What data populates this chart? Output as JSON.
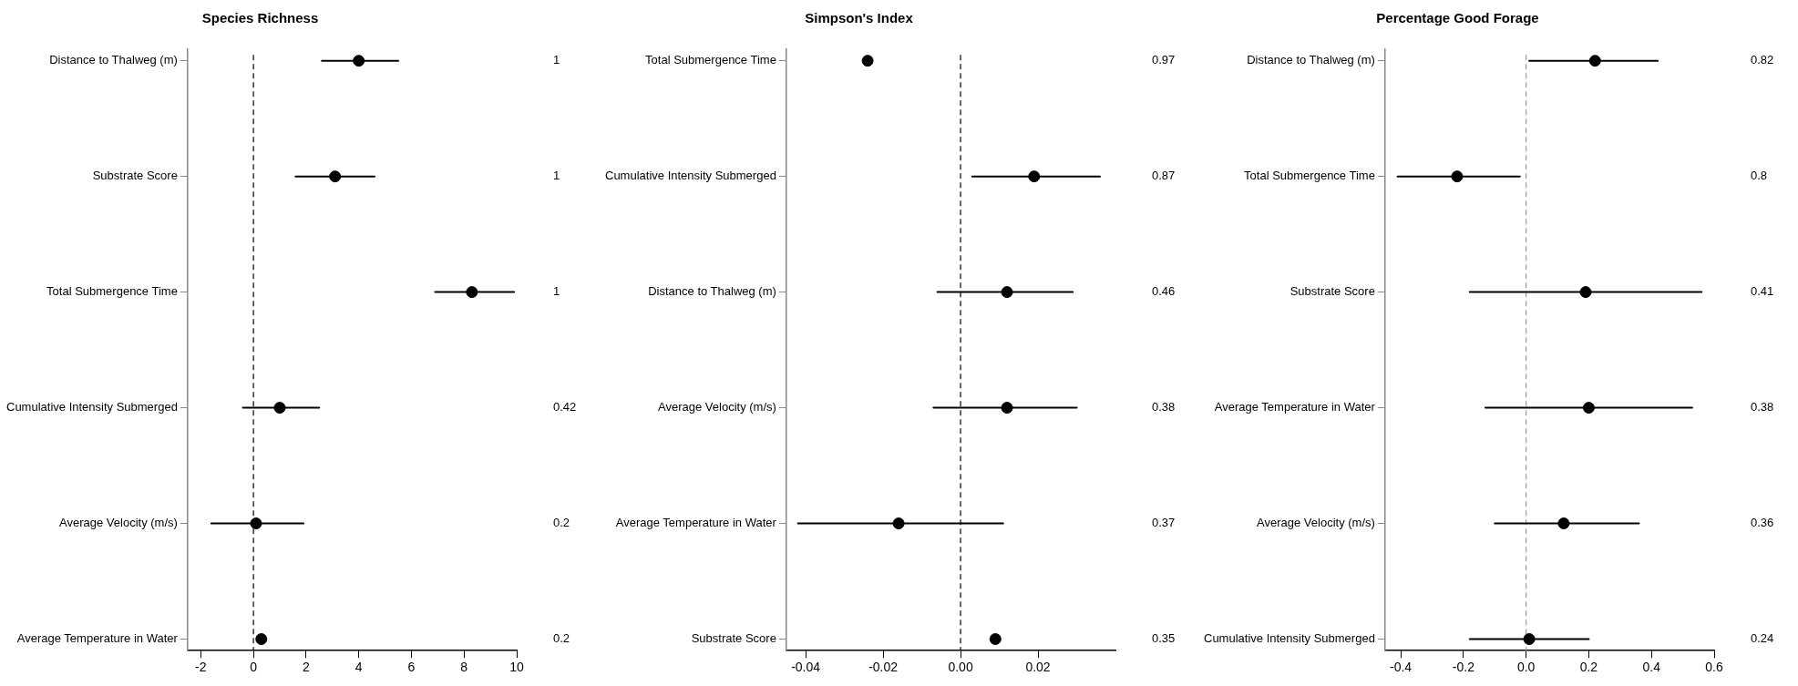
{
  "chart_data": [
    {
      "type": "scatter",
      "title": "Species Richness",
      "orientation": "horizontal",
      "marker": "circle",
      "color": "#000000",
      "categories": [
        "Distance to Thalweg (m)",
        "Substrate Score",
        "Total Submergence Time",
        "Cumulative Intensity Submerged",
        "Average Velocity (m/s)",
        "Average Temperature in Water"
      ],
      "values": [
        4.0,
        3.1,
        8.3,
        1.0,
        0.1,
        0.3
      ],
      "errors": [
        [
          2.6,
          5.5
        ],
        [
          1.6,
          4.6
        ],
        [
          6.9,
          9.9
        ],
        [
          -0.4,
          2.5
        ],
        [
          -1.6,
          1.9
        ],
        null
      ],
      "xlim": [
        -2.5,
        10
      ],
      "xticks": [
        -2,
        0,
        2,
        4,
        6,
        8,
        10
      ],
      "ref_lines": [
        {
          "axis": "x",
          "value": 0,
          "color": "#000000",
          "line_style": "dashed"
        }
      ],
      "annotations": [
        "1",
        "1",
        "1",
        "0.42",
        "0.2",
        "0.2"
      ]
    },
    {
      "type": "scatter",
      "title": "Simpson's Index",
      "orientation": "horizontal",
      "marker": "circle",
      "color": "#000000",
      "categories": [
        "Total Submergence Time",
        "Cumulative Intensity Submerged",
        "Distance to Thalweg (m)",
        "Average Velocity (m/s)",
        "Average Temperature in Water",
        "Substrate Score"
      ],
      "values": [
        -0.024,
        0.019,
        0.012,
        0.012,
        -0.016,
        0.009
      ],
      "errors": [
        null,
        [
          0.003,
          0.036
        ],
        [
          -0.006,
          0.029
        ],
        [
          -0.007,
          0.03
        ],
        [
          -0.042,
          0.011
        ],
        null
      ],
      "xlim": [
        -0.045,
        0.04
      ],
      "xticks": [
        {
          "value": -0.04,
          "label": "-0.04"
        },
        {
          "value": -0.02,
          "label": "-0.02"
        },
        {
          "value": 0,
          "label": "0.00"
        },
        {
          "value": 0.02,
          "label": "0.02"
        }
      ],
      "ref_lines": [
        {
          "axis": "x",
          "value": 0,
          "color": "#000000",
          "line_style": "dashed"
        }
      ],
      "annotations": [
        "0.97",
        "0.87",
        "0.46",
        "0.38",
        "0.37",
        "0.35"
      ]
    },
    {
      "type": "scatter",
      "title": "Percentage Good Forage",
      "orientation": "horizontal",
      "marker": "circle",
      "color": "#000000",
      "categories": [
        "Distance to Thalweg (m)",
        "Total Submergence Time",
        "Substrate Score",
        "Average Temperature in Water",
        "Average Velocity (m/s)",
        "Cumulative Intensity Submerged"
      ],
      "values": [
        0.22,
        -0.22,
        0.19,
        0.2,
        0.12,
        0.01
      ],
      "errors": [
        [
          0.01,
          0.42
        ],
        [
          -0.41,
          -0.02
        ],
        [
          -0.18,
          0.56
        ],
        [
          -0.13,
          0.53
        ],
        [
          -0.1,
          0.36
        ],
        [
          -0.18,
          0.2
        ]
      ],
      "xlim": [
        -0.45,
        0.6
      ],
      "xticks": [
        {
          "value": -0.4,
          "label": "-0.4"
        },
        {
          "value": -0.2,
          "label": "-0.2"
        },
        {
          "value": 0,
          "label": "0.0"
        },
        {
          "value": 0.2,
          "label": "0.2"
        },
        {
          "value": 0.4,
          "label": "0.4"
        },
        {
          "value": 0.6,
          "label": "0.6"
        }
      ],
      "ref_lines": [
        {
          "axis": "x",
          "value": 0,
          "color": "#999999",
          "line_style": "dashed"
        }
      ],
      "annotations": [
        "0.82",
        "0.8",
        "0.41",
        "0.38",
        "0.36",
        "0.24"
      ]
    }
  ]
}
